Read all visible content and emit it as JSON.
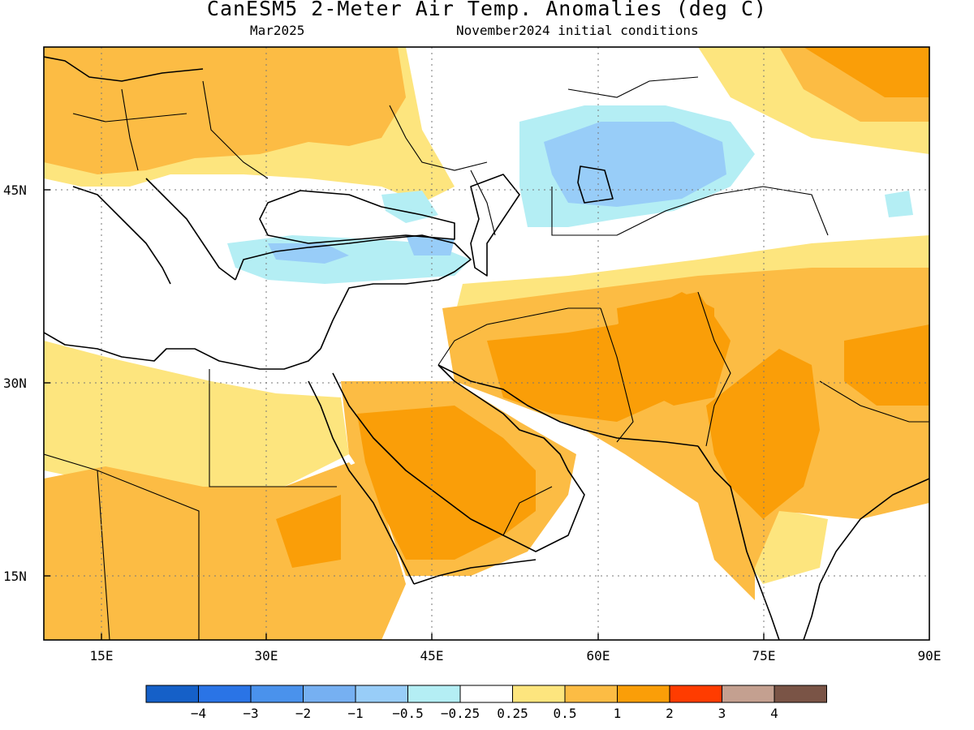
{
  "map": {
    "title": "CanESM5 2-Meter Air Temp. Anomalies (deg C)",
    "valid_month": "Mar2025",
    "initial_conditions": "November2024 initial conditions",
    "lon_labels": [
      "15E",
      "30E",
      "45E",
      "60E",
      "75E",
      "90E"
    ],
    "lat_labels": [
      "45N",
      "30N",
      "15N"
    ],
    "legend": {
      "colors": [
        "#1560c8",
        "#2a74e6",
        "#4a92ec",
        "#76b0f2",
        "#98cdf8",
        "#b4eef4",
        "#ffffff",
        "#fde57e",
        "#fcbc44",
        "#fa9e08",
        "#ff3c00",
        "#c4a090",
        "#7a5446"
      ],
      "labels": [
        "−4",
        "−3",
        "−2",
        "−1",
        "−0.5",
        "−0.25",
        "0.25",
        "0.5",
        "1",
        "2",
        "3",
        "4"
      ]
    }
  }
}
